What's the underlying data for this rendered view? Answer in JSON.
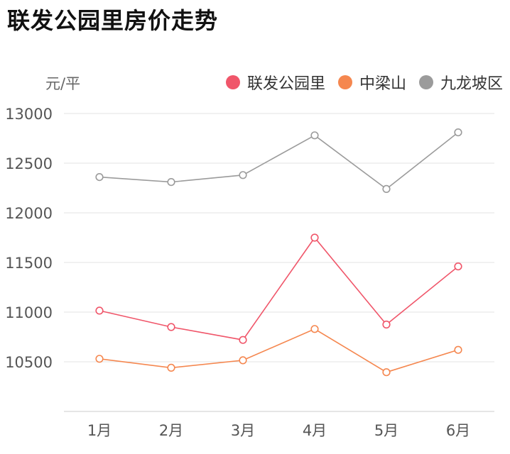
{
  "title": "联发公园里房价走势",
  "unit_label": "元/平",
  "chart_data": {
    "type": "line",
    "title": "联发公园里房价走势",
    "ylabel": "元/平",
    "xlabel": "",
    "categories": [
      "1月",
      "2月",
      "3月",
      "4月",
      "5月",
      "6月"
    ],
    "ylim": [
      10000,
      13000
    ],
    "yticks": [
      13000,
      12500,
      12000,
      11500,
      11000,
      10500
    ],
    "grid": true,
    "legend_position": "top-right",
    "series": [
      {
        "name": "联发公园里",
        "color": "#f0566a",
        "values": [
          11015,
          10850,
          10720,
          11750,
          10875,
          11460
        ]
      },
      {
        "name": "中梁山",
        "color": "#f5874f",
        "values": [
          10530,
          10440,
          10515,
          10830,
          10395,
          10620
        ]
      },
      {
        "name": "九龙坡区",
        "color": "#9b9b9b",
        "values": [
          12360,
          12310,
          12380,
          12780,
          12240,
          12810
        ]
      }
    ]
  }
}
